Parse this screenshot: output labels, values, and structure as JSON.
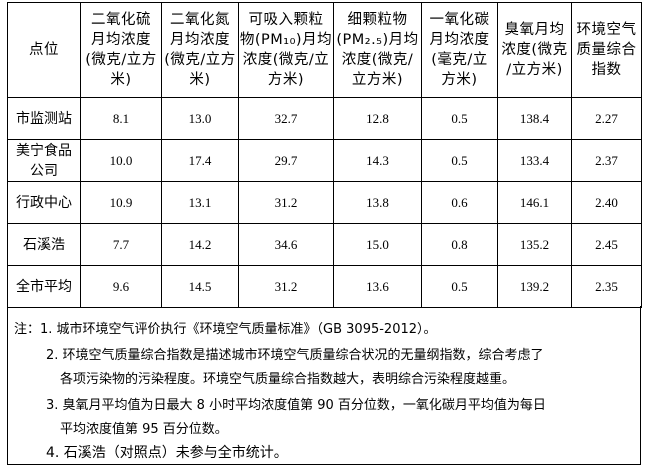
{
  "table": {
    "headers": [
      "点位",
      "二氧化硫\n月均浓度\n(微克/立方\n米)",
      "二氧化氮\n月均浓度\n(微克/立方\n米)",
      "可吸入颗粒\n物(PM₁₀)月均\n浓度(微克/立\n方米)",
      "细颗粒物\n(PM₂.₅)月均\n浓度(微克/\n立方米)",
      "一氧化碳\n月均浓度\n(毫克/立\n方米)",
      "臭氧月均\n浓度(微克\n/立方米)",
      "环境空气\n质量综合\n指数"
    ],
    "rows": [
      [
        "市监测站",
        "8.1",
        "13.0",
        "32.7",
        "12.8",
        "0.5",
        "138.4",
        "2.27"
      ],
      [
        "美宁食品\n公司",
        "10.0",
        "17.4",
        "29.7",
        "14.3",
        "0.5",
        "133.4",
        "2.37"
      ],
      [
        "行政中心",
        "10.9",
        "13.1",
        "31.2",
        "13.8",
        "0.6",
        "146.1",
        "2.40"
      ],
      [
        "石溪浩",
        "7.7",
        "14.2",
        "34.6",
        "15.0",
        "0.8",
        "135.2",
        "2.45"
      ],
      [
        "全市平均",
        "9.6",
        "14.5",
        "31.2",
        "13.6",
        "0.5",
        "139.2",
        "2.35"
      ]
    ]
  },
  "notes": {
    "prefix": "注：",
    "n1": "1. 城市环境空气评价执行《环境空气质量标准》（GB 3095-2012）。",
    "n2a": "2. 环境空气质量综合指数是描述城市环境空气质量综合状况的无量纲指数，综合考虑了",
    "n2b": "各项污染物的污染程度。环境空气质量综合指数越大，表明综合污染程度越重。",
    "n3a": "3. 臭氧月平均值为日最大 8 小时平均浓度值第 90 百分位数，一氧化碳月平均值为每日",
    "n3b": "平均浓度值第 95 百分位数。",
    "n4": "4. 石溪浩（对照点）未参与全市统计。"
  }
}
